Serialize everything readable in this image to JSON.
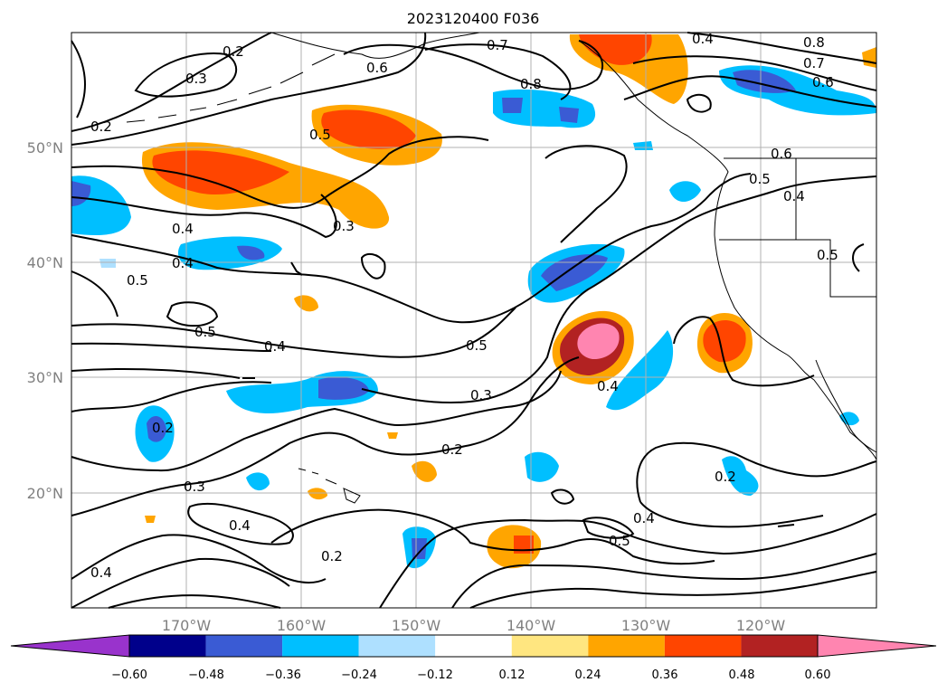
{
  "title": "2023120400 F036",
  "latitude_labels": [
    "50°N",
    "40°N",
    "30°N",
    "20°N"
  ],
  "longitude_labels": [
    "170°W",
    "160°W",
    "150°W",
    "140°W",
    "130°W",
    "120°W"
  ],
  "colorbar": {
    "ticks": [
      "−0.60",
      "−0.48",
      "−0.36",
      "−0.24",
      "−0.12",
      "0.12",
      "0.24",
      "0.36",
      "0.48",
      "0.60"
    ],
    "colors": [
      "#9933cc",
      "#00008b",
      "#3a5bd4",
      "#00bfff",
      "#aee0ff",
      "#ffffff",
      "#ffe680",
      "#ffa500",
      "#ff4500",
      "#b22222",
      "#ff85b0"
    ]
  },
  "contour_labels": [
    "0.2",
    "0.3",
    "0.2",
    "0.7",
    "0.6",
    "0.8",
    "0.8",
    "0.7",
    "0.6",
    "0.4",
    "0.5",
    "0.5",
    "0.6",
    "0.5",
    "0.4",
    "0.4",
    "0.3",
    "0.4",
    "0.5",
    "0.5",
    "0.4",
    "0.5",
    "0.3",
    "0.4",
    "0.2",
    "0.2",
    "0.3",
    "0.4",
    "0.4",
    "0.5",
    "0.2",
    "0.2",
    "0.4"
  ]
}
